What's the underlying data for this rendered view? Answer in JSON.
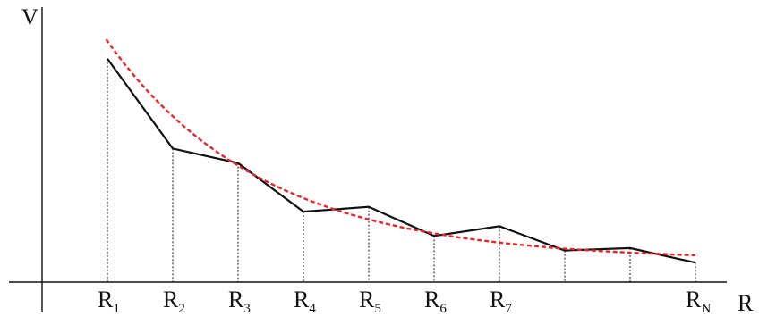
{
  "axes": {
    "y_label": "V",
    "x_label": "R"
  },
  "markers": [
    {
      "base": "R",
      "sub": "1",
      "position": 1
    },
    {
      "base": "R",
      "sub": "2",
      "position": 2
    },
    {
      "base": "R",
      "sub": "3",
      "position": 3
    },
    {
      "base": "R",
      "sub": "4",
      "position": 4
    },
    {
      "base": "R",
      "sub": "5",
      "position": 5
    },
    {
      "base": "R",
      "sub": "6",
      "position": 6
    },
    {
      "base": "R",
      "sub": "7",
      "position": 7
    },
    {
      "base": "",
      "sub": "",
      "position": 8
    },
    {
      "base": "",
      "sub": "",
      "position": 9
    },
    {
      "base": "R",
      "sub": "N",
      "position": 10
    }
  ],
  "sampled_values": [
    0.92,
    0.55,
    0.49,
    0.29,
    0.31,
    0.19,
    0.23,
    0.13,
    0.14,
    0.08
  ],
  "fit_curve": {
    "style": "dashed",
    "color": "#e8252b",
    "start": 1.0,
    "floor": 0.09,
    "decay": 0.42,
    "x_start": 0.98,
    "x_end": 10.0
  },
  "colors": {
    "polyline": "#111111",
    "axis": "#111111",
    "guide": "#111111"
  }
}
